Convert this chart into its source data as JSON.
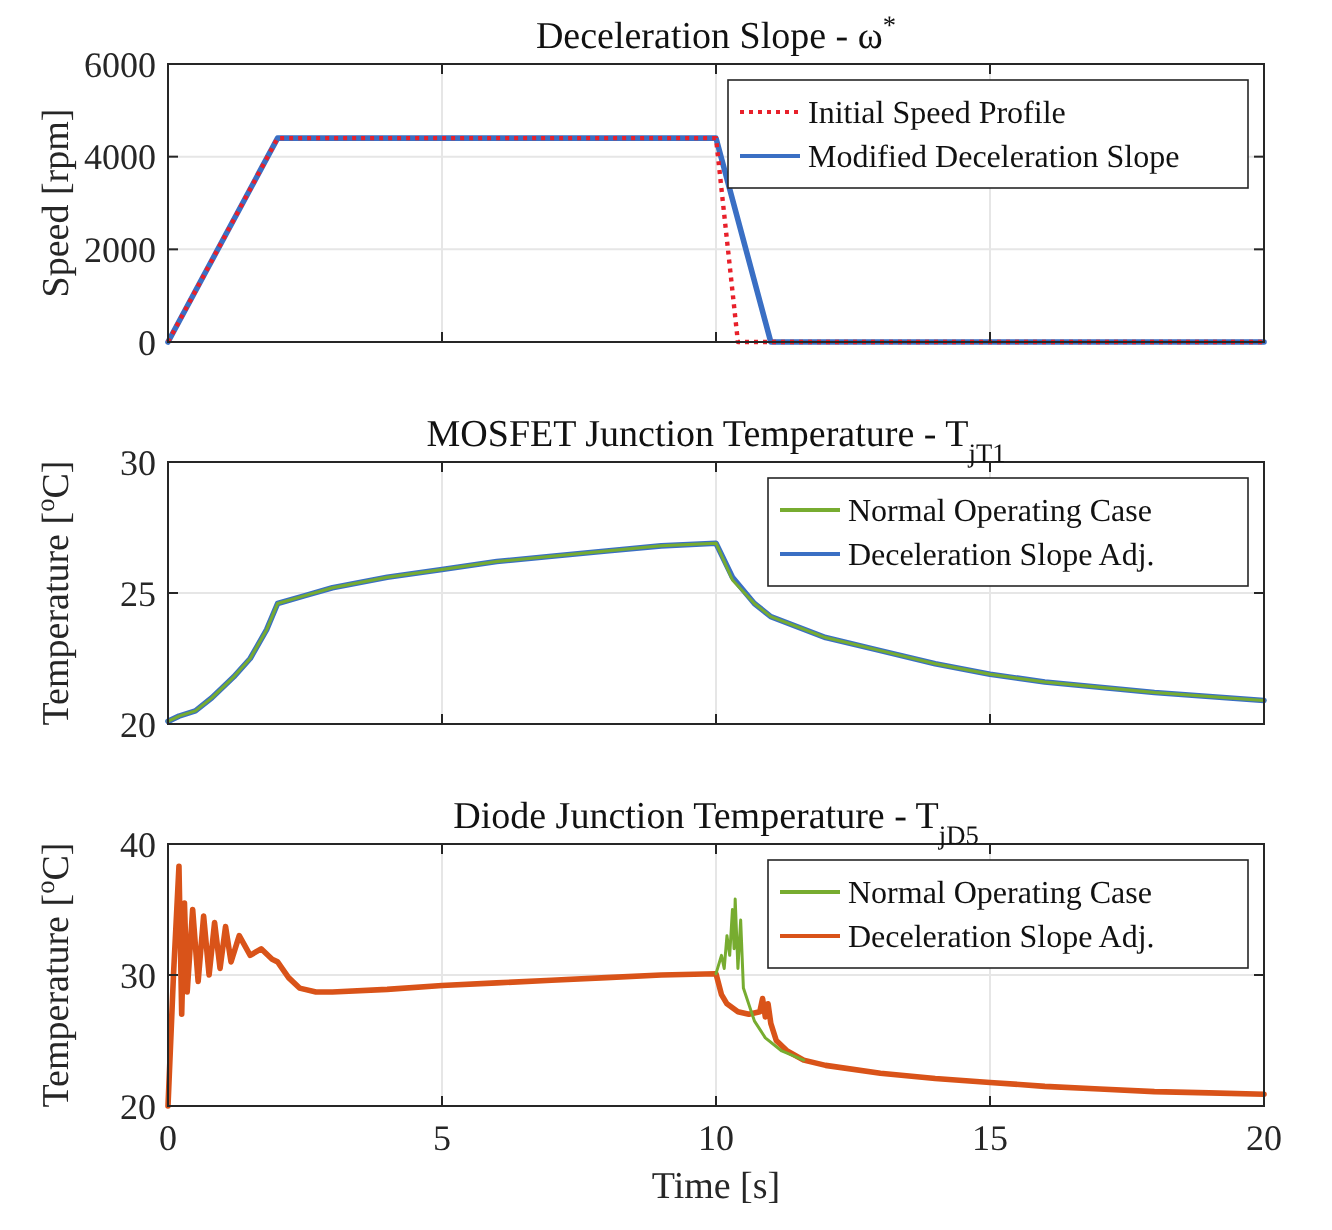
{
  "chart_data": [
    {
      "type": "line",
      "title": "Deceleration Slope - ω$^{*}$",
      "ylabel": "Speed [rpm]",
      "xlim": [
        0,
        20
      ],
      "xticks": [
        0,
        5,
        10,
        15,
        20
      ],
      "ylim": [
        0,
        6000
      ],
      "yticks": [
        0,
        2000,
        4000,
        6000
      ],
      "grid": true,
      "legend": "top right",
      "tick_labels": "y",
      "series": [
        {
          "name": "Initial Speed Profile",
          "color": "#e8202a",
          "line_style": "dotted",
          "x": [
            0,
            2,
            10,
            10.4,
            20
          ],
          "values": [
            0,
            4400,
            4400,
            0,
            0
          ]
        },
        {
          "name": "Modified Deceleration Slope",
          "color": "#3a6fc4",
          "line_style": "solid",
          "x": [
            0,
            2,
            10,
            11,
            20
          ],
          "values": [
            0,
            4400,
            4400,
            0,
            0
          ]
        }
      ]
    },
    {
      "type": "line",
      "title": "MOSFET Junction Temperature - T$_{jT1}$",
      "ylabel": "Temperature [$^{o}$C]",
      "xlim": [
        0,
        20
      ],
      "xticks": [
        0,
        5,
        10,
        15,
        20
      ],
      "ylim": [
        20,
        30
      ],
      "yticks": [
        20,
        25,
        30
      ],
      "grid": true,
      "legend": "top right",
      "tick_labels": "y",
      "series": [
        {
          "name": "Normal Operating Case",
          "color": "#77ac30",
          "line_style": "solid",
          "x": [
            0,
            0.2,
            0.5,
            0.8,
            1.2,
            1.5,
            1.8,
            2,
            2.5,
            3,
            4,
            5,
            6,
            7,
            8,
            9,
            10,
            10.3,
            10.7,
            11,
            12,
            13,
            14,
            15,
            16,
            17,
            18,
            19,
            20
          ],
          "values": [
            20.1,
            20.3,
            20.5,
            21,
            21.8,
            22.5,
            23.6,
            24.6,
            24.9,
            25.2,
            25.6,
            25.9,
            26.2,
            26.4,
            26.6,
            26.8,
            26.9,
            25.5,
            24.6,
            24.1,
            23.3,
            22.8,
            22.3,
            21.9,
            21.6,
            21.4,
            21.2,
            21.05,
            20.9
          ]
        },
        {
          "name": "Deceleration Slope Adj.",
          "color": "#3a6fc4",
          "line_style": "solid",
          "x": [
            0,
            0.2,
            0.5,
            0.8,
            1.2,
            1.5,
            1.8,
            2,
            2.5,
            3,
            4,
            5,
            6,
            7,
            8,
            9,
            10,
            10.3,
            10.7,
            11,
            12,
            13,
            14,
            15,
            16,
            17,
            18,
            19,
            20
          ],
          "values": [
            20.1,
            20.3,
            20.5,
            21,
            21.8,
            22.5,
            23.6,
            24.6,
            24.9,
            25.2,
            25.6,
            25.9,
            26.2,
            26.4,
            26.6,
            26.8,
            26.9,
            25.6,
            24.6,
            24.1,
            23.3,
            22.8,
            22.3,
            21.9,
            21.6,
            21.4,
            21.2,
            21.05,
            20.9
          ]
        }
      ]
    },
    {
      "type": "line",
      "title": "Diode Junction Temperature - T$_{jD5}$",
      "xlabel": "Time [s]",
      "ylabel": "Temperature [$^{o}$C]",
      "xlim": [
        0,
        20
      ],
      "xticks": [
        0,
        5,
        10,
        15,
        20
      ],
      "ylim": [
        20,
        40
      ],
      "yticks": [
        20,
        30,
        40
      ],
      "grid": true,
      "legend": "top right",
      "series": [
        {
          "name": "Normal Operating Case",
          "color": "#77ac30",
          "line_style": "solid",
          "x": [
            10,
            10.1,
            10.15,
            10.2,
            10.25,
            10.3,
            10.33,
            10.35,
            10.4,
            10.45,
            10.5,
            10.7,
            10.9,
            11.2,
            11.6
          ],
          "values": [
            30.1,
            31.5,
            30.5,
            33,
            31.5,
            35,
            32,
            35.8,
            30.5,
            34.2,
            29,
            26.5,
            25.2,
            24.2,
            23.5
          ]
        },
        {
          "name": "Deceleration Slope Adj.",
          "color": "#d95319",
          "line_style": "solid",
          "x": [
            0,
            0.1,
            0.2,
            0.25,
            0.3,
            0.35,
            0.45,
            0.55,
            0.65,
            0.75,
            0.85,
            0.95,
            1.05,
            1.15,
            1.3,
            1.5,
            1.7,
            1.9,
            2,
            2.2,
            2.4,
            2.7,
            3,
            4,
            5,
            6,
            7,
            8,
            9,
            10,
            10.1,
            10.2,
            10.4,
            10.6,
            10.8,
            10.85,
            10.9,
            10.95,
            11,
            11.1,
            11.3,
            11.6,
            12,
            13,
            14,
            15,
            16,
            17,
            18,
            19,
            20
          ],
          "values": [
            20,
            30,
            38.3,
            27,
            35.5,
            28.7,
            35,
            29.5,
            34.5,
            30,
            34,
            30.5,
            33.7,
            31,
            33,
            31.5,
            32,
            31.2,
            31,
            29.8,
            29,
            28.7,
            28.7,
            28.9,
            29.2,
            29.4,
            29.6,
            29.8,
            30,
            30.1,
            28.5,
            27.8,
            27.2,
            27,
            27.2,
            28.2,
            26.8,
            27.8,
            26.3,
            25,
            24.2,
            23.5,
            23.1,
            22.5,
            22.1,
            21.8,
            21.5,
            21.3,
            21.1,
            21,
            20.9
          ]
        }
      ]
    }
  ]
}
